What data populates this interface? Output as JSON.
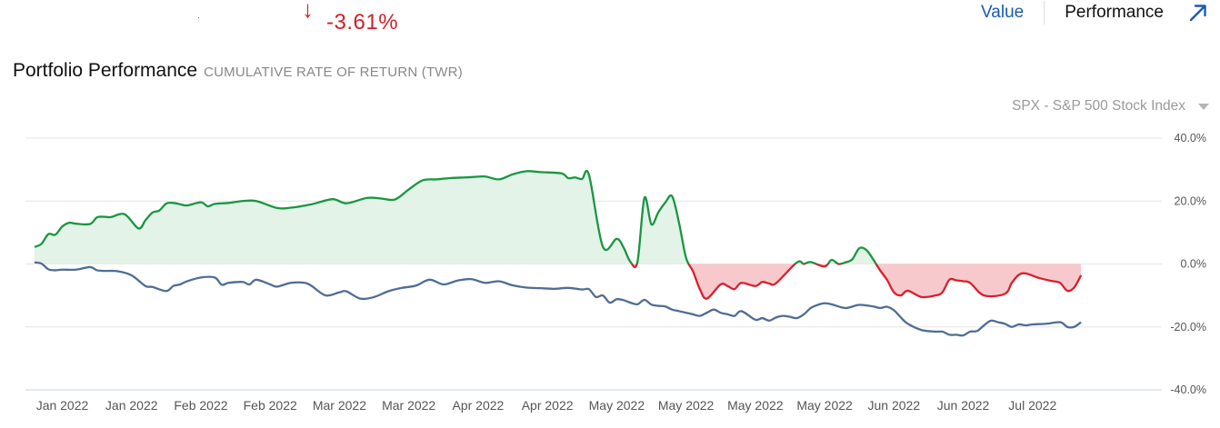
{
  "summary": {
    "arrow": "↓",
    "change": "-3.61%"
  },
  "toggle": {
    "value_label": "Value",
    "performance_label": "Performance"
  },
  "header": {
    "title": "Portfolio Performance",
    "subtitle": "CUMULATIVE RATE OF RETURN (TWR)"
  },
  "benchmark_selector": {
    "selected": "SPX - S&P 500 Stock Index"
  },
  "colors": {
    "positive": "#1a9641",
    "positive_fill": "#e3f3e7",
    "negative": "#d7202d",
    "negative_fill": "#f7c9cd",
    "benchmark": "#4f6d95",
    "grid": "#e4e4e4",
    "axis_text": "#555555"
  },
  "chart_data": {
    "type": "area",
    "title": "Portfolio Performance",
    "subtitle": "CUMULATIVE RATE OF RETURN (TWR)",
    "ylim": [
      -40,
      40
    ],
    "y_ticks": [
      40,
      20,
      0,
      -20,
      -40
    ],
    "y_tick_labels": [
      "40.0%",
      "20.0%",
      "0.0%",
      "-20.0%",
      "-40.0%"
    ],
    "x_domain": [
      0,
      162
    ],
    "x_ticks": [
      4,
      14,
      24,
      34,
      44,
      54,
      64,
      74,
      84,
      94,
      104,
      114,
      124,
      134,
      144
    ],
    "x_tick_labels": [
      "Jan 2022",
      "Jan 2022",
      "Feb 2022",
      "Feb 2022",
      "Mar 2022",
      "Mar 2022",
      "Apr 2022",
      "Apr 2022",
      "May 2022",
      "May 2022",
      "May 2022",
      "May 2022",
      "Jun 2022",
      "Jun 2022",
      "Jul 2022"
    ],
    "series": [
      {
        "name": "Portfolio",
        "x": [
          0,
          1,
          2,
          3,
          4,
          5,
          6,
          8,
          9,
          10,
          11,
          13,
          15,
          16,
          17,
          18,
          19,
          20,
          21,
          22,
          24,
          25,
          26,
          28,
          30,
          32,
          35,
          37,
          40,
          43,
          45,
          48,
          50,
          52,
          54,
          56,
          58,
          60,
          63,
          65,
          67,
          69,
          71,
          73,
          76,
          77,
          78,
          79,
          80,
          82,
          84,
          85,
          86,
          87,
          88,
          89,
          90,
          91,
          92,
          93,
          94,
          95,
          96,
          97,
          99,
          100,
          101,
          102,
          104,
          105,
          106,
          107,
          110,
          111,
          112,
          114,
          115,
          116,
          117,
          118,
          119,
          120,
          121,
          122,
          123,
          124,
          125,
          126,
          128,
          130,
          131,
          132,
          133,
          134,
          135,
          137,
          140,
          141,
          142,
          143,
          145,
          147,
          148,
          149,
          150,
          151
        ],
        "values": [
          5.4,
          6.4,
          9.5,
          9.3,
          11.9,
          13.1,
          12.8,
          12.7,
          14.8,
          15.0,
          14.9,
          15.8,
          11.3,
          13.9,
          16.3,
          17.0,
          19.2,
          19.4,
          19.0,
          18.6,
          19.6,
          18.3,
          19.1,
          19.4,
          20.0,
          20.0,
          17.8,
          17.9,
          19.0,
          20.6,
          19.3,
          21.0,
          20.8,
          20.5,
          23.7,
          26.6,
          26.9,
          27.3,
          27.6,
          27.8,
          26.9,
          28.5,
          29.5,
          29.2,
          28.8,
          27.3,
          27.5,
          27.0,
          28.3,
          5.5,
          8.0,
          5.2,
          0.6,
          0.7,
          21.0,
          12.6,
          16.4,
          19.5,
          21.5,
          13.0,
          2.0,
          -2.3,
          -8.0,
          -11.0,
          -6.5,
          -7.0,
          -8.0,
          -6.0,
          -7.0,
          -5.7,
          -6.2,
          -6.1,
          0.5,
          0.0,
          0.6,
          -0.8,
          1.3,
          0.0,
          0.5,
          1.5,
          5.0,
          4.5,
          1.5,
          -2.0,
          -5.0,
          -9.0,
          -10.0,
          -8.5,
          -10.5,
          -10.0,
          -9.0,
          -5.0,
          -5.2,
          -5.5,
          -6.0,
          -10.0,
          -9.5,
          -6.0,
          -3.5,
          -3.0,
          -4.5,
          -5.5,
          -6.0,
          -8.5,
          -7.5,
          -3.6
        ]
      },
      {
        "name": "SPX - S&P 500 Stock Index",
        "x": [
          0,
          1,
          2,
          3,
          4,
          6,
          8,
          9,
          10,
          12,
          14,
          16,
          17,
          19,
          20,
          21,
          22,
          24,
          26,
          27,
          28,
          30,
          31,
          32,
          34,
          35,
          37,
          39,
          40,
          42,
          44,
          45,
          47,
          49,
          51,
          53,
          55,
          57,
          59,
          61,
          63,
          65,
          67,
          69,
          71,
          73,
          75,
          77,
          79,
          80,
          81,
          82,
          83,
          84,
          85,
          86,
          87,
          88,
          89,
          90,
          91,
          92,
          93,
          94,
          95,
          96,
          97,
          98,
          99,
          100,
          101,
          102,
          104,
          105,
          106,
          107,
          108,
          109,
          110,
          111,
          112,
          113,
          114,
          115,
          117,
          119,
          121,
          122,
          123,
          124,
          125,
          126,
          128,
          130,
          131,
          132,
          133,
          134,
          135,
          136,
          137,
          138,
          139,
          140,
          141,
          142,
          143,
          144,
          146,
          148,
          149,
          150,
          151
        ],
        "values": [
          0.5,
          0.1,
          -1.7,
          -2.0,
          -1.8,
          -1.8,
          -1.0,
          -2.0,
          -2.2,
          -2.3,
          -3.6,
          -7.0,
          -7.3,
          -8.6,
          -7.0,
          -6.5,
          -5.5,
          -4.3,
          -4.3,
          -6.6,
          -6.0,
          -5.7,
          -6.5,
          -5.0,
          -6.5,
          -7.2,
          -6.0,
          -6.0,
          -7.0,
          -10.0,
          -9.0,
          -8.7,
          -11.0,
          -10.5,
          -8.7,
          -7.6,
          -6.9,
          -5.0,
          -6.5,
          -5.3,
          -4.8,
          -6.0,
          -5.5,
          -6.8,
          -7.5,
          -7.7,
          -7.9,
          -7.6,
          -8.1,
          -8.0,
          -10.5,
          -10.0,
          -12.3,
          -11.2,
          -11.5,
          -12.3,
          -12.8,
          -11.4,
          -12.9,
          -13.3,
          -13.5,
          -14.5,
          -15.0,
          -15.5,
          -16.0,
          -16.5,
          -15.5,
          -14.5,
          -15.5,
          -16.0,
          -16.5,
          -15.0,
          -17.7,
          -17.2,
          -18.0,
          -17.0,
          -16.5,
          -16.8,
          -17.2,
          -16.0,
          -14.0,
          -13.0,
          -12.5,
          -12.8,
          -14.0,
          -13.0,
          -13.5,
          -14.0,
          -13.6,
          -14.7,
          -17.0,
          -19.0,
          -21.0,
          -21.5,
          -21.5,
          -22.5,
          -22.5,
          -22.7,
          -21.5,
          -21.3,
          -19.5,
          -18.0,
          -18.5,
          -19.0,
          -20.0,
          -19.2,
          -19.5,
          -19.2,
          -19.0,
          -18.5,
          -20.0,
          -20.0,
          -18.5
        ]
      }
    ]
  }
}
